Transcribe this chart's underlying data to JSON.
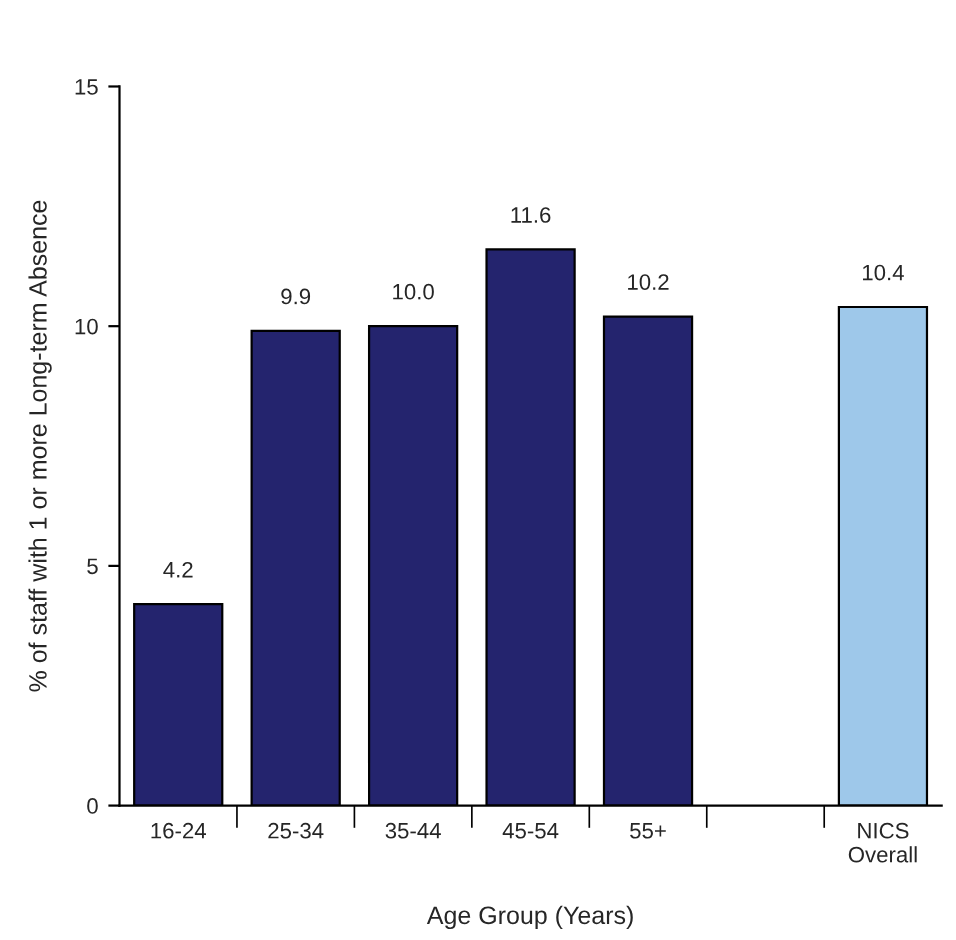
{
  "chart_data": {
    "type": "bar",
    "xlabel": "Age Group (Years)",
    "ylabel": "% of staff with 1 or more Long-term Absence",
    "categories": [
      "16-24",
      "25-34",
      "35-44",
      "45-54",
      "55+",
      null,
      "NICS\nOverall"
    ],
    "values": [
      4.2,
      9.9,
      10.0,
      11.6,
      10.2,
      null,
      10.4
    ],
    "value_labels": [
      "4.2",
      "9.9",
      "10.0",
      "11.6",
      "10.2",
      null,
      "10.4"
    ],
    "colors": [
      "#24246e",
      "#24246e",
      "#24246e",
      "#24246e",
      "#24246e",
      null,
      "#9ec8ea"
    ],
    "ylim": [
      0,
      15
    ],
    "yticks": [
      0,
      5,
      10,
      15
    ],
    "grid": false,
    "legend": false
  }
}
